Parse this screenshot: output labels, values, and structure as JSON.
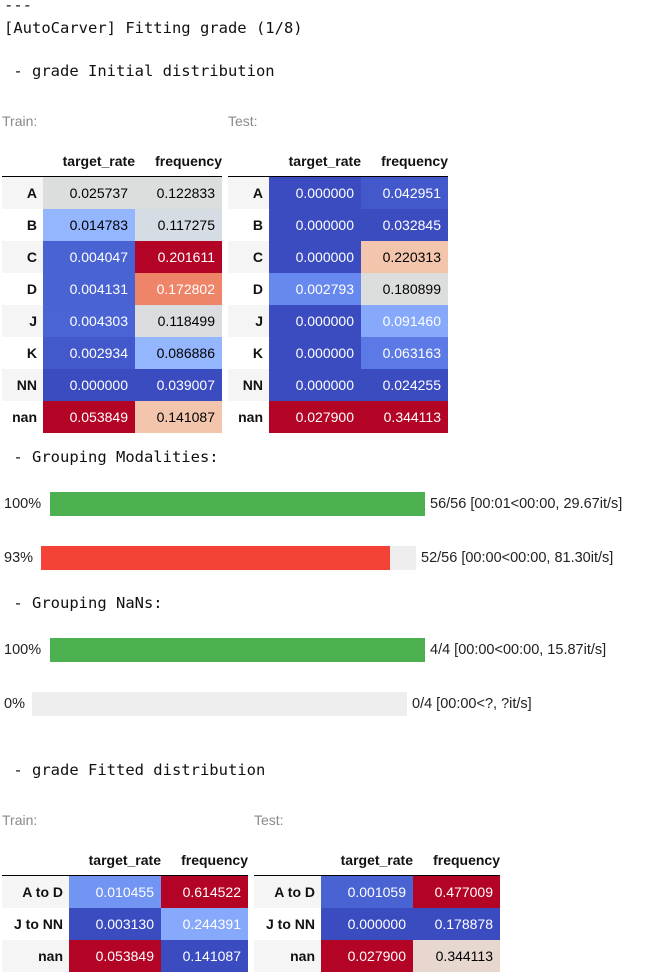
{
  "header": {
    "separator": "---",
    "title": "[AutoCarver] Fitting grade (1/8)"
  },
  "sections": {
    "initial": " - grade Initial distribution",
    "grouping_modalities": " - Grouping Modalities:",
    "grouping_nans": " - Grouping NaNs:",
    "fitted": " - grade Fitted distribution"
  },
  "captions": {
    "train": "Train:",
    "test": "Test:"
  },
  "colors": {
    "dark_blue": "#3c4ec2",
    "mid_blue": "#4a63d3",
    "light_blue": "#94b6ff",
    "pale_blue": "#86a9fc",
    "gray": "#dcdddd",
    "peach": "#f4c5ad",
    "salmon": "#ee8468",
    "dark_red": "#b40426",
    "progress_green": "#4caf50",
    "progress_red": "#f44336",
    "progress_track": "#eeeeee"
  },
  "tables": {
    "initial_train": {
      "columns": [
        "target_rate",
        "frequency"
      ],
      "rows": [
        {
          "label": "A",
          "cells": [
            {
              "v": "0.025737",
              "bg": "#dcdddd",
              "fg": "#000"
            },
            {
              "v": "0.122833",
              "bg": "#dcdddd",
              "fg": "#000"
            }
          ]
        },
        {
          "label": "B",
          "cells": [
            {
              "v": "0.014783",
              "bg": "#94b6ff",
              "fg": "#000"
            },
            {
              "v": "0.117275",
              "bg": "#d6dce4",
              "fg": "#000"
            }
          ]
        },
        {
          "label": "C",
          "cells": [
            {
              "v": "0.004047",
              "bg": "#4a63d3",
              "fg": "#fff"
            },
            {
              "v": "0.201611",
              "bg": "#b40426",
              "fg": "#fff"
            }
          ]
        },
        {
          "label": "D",
          "cells": [
            {
              "v": "0.004131",
              "bg": "#4a63d3",
              "fg": "#fff"
            },
            {
              "v": "0.172802",
              "bg": "#ee8468",
              "fg": "#fff"
            }
          ]
        },
        {
          "label": "J",
          "cells": [
            {
              "v": "0.004303",
              "bg": "#4b64d5",
              "fg": "#fff"
            },
            {
              "v": "0.118499",
              "bg": "#dadce0",
              "fg": "#000"
            }
          ]
        },
        {
          "label": "K",
          "cells": [
            {
              "v": "0.002934",
              "bg": "#4358cb",
              "fg": "#fff"
            },
            {
              "v": "0.086886",
              "bg": "#94b6ff",
              "fg": "#000"
            }
          ]
        },
        {
          "label": "NN",
          "cells": [
            {
              "v": "0.000000",
              "bg": "#3b4cc0",
              "fg": "#fff"
            },
            {
              "v": "0.039007",
              "bg": "#3b4cc0",
              "fg": "#fff"
            }
          ]
        },
        {
          "label": "nan",
          "cells": [
            {
              "v": "0.053849",
              "bg": "#b40426",
              "fg": "#fff"
            },
            {
              "v": "0.141087",
              "bg": "#f4c5ad",
              "fg": "#000"
            }
          ]
        }
      ]
    },
    "initial_test": {
      "columns": [
        "target_rate",
        "frequency"
      ],
      "rows": [
        {
          "label": "A",
          "cells": [
            {
              "v": "0.000000",
              "bg": "#3b4cc0",
              "fg": "#fff"
            },
            {
              "v": "0.042951",
              "bg": "#4358cb",
              "fg": "#fff"
            }
          ]
        },
        {
          "label": "B",
          "cells": [
            {
              "v": "0.000000",
              "bg": "#3b4cc0",
              "fg": "#fff"
            },
            {
              "v": "0.032845",
              "bg": "#3b4cc0",
              "fg": "#fff"
            }
          ]
        },
        {
          "label": "C",
          "cells": [
            {
              "v": "0.000000",
              "bg": "#3b4cc0",
              "fg": "#fff"
            },
            {
              "v": "0.220313",
              "bg": "#f4c5ad",
              "fg": "#000"
            }
          ]
        },
        {
          "label": "D",
          "cells": [
            {
              "v": "0.002793",
              "bg": "#6788ee",
              "fg": "#fff"
            },
            {
              "v": "0.180899",
              "bg": "#dcdddd",
              "fg": "#000"
            }
          ]
        },
        {
          "label": "J",
          "cells": [
            {
              "v": "0.000000",
              "bg": "#3b4cc0",
              "fg": "#fff"
            },
            {
              "v": "0.091460",
              "bg": "#86a9fc",
              "fg": "#fff"
            }
          ]
        },
        {
          "label": "K",
          "cells": [
            {
              "v": "0.000000",
              "bg": "#3b4cc0",
              "fg": "#fff"
            },
            {
              "v": "0.063163",
              "bg": "#5b7ae5",
              "fg": "#fff"
            }
          ]
        },
        {
          "label": "NN",
          "cells": [
            {
              "v": "0.000000",
              "bg": "#3b4cc0",
              "fg": "#fff"
            },
            {
              "v": "0.024255",
              "bg": "#3b4cc0",
              "fg": "#fff"
            }
          ]
        },
        {
          "label": "nan",
          "cells": [
            {
              "v": "0.027900",
              "bg": "#b40426",
              "fg": "#fff"
            },
            {
              "v": "0.344113",
              "bg": "#b40426",
              "fg": "#fff"
            }
          ]
        }
      ]
    },
    "fitted_train": {
      "columns": [
        "target_rate",
        "frequency"
      ],
      "rows": [
        {
          "label": "A to D",
          "cells": [
            {
              "v": "0.010455",
              "bg": "#7295f4",
              "fg": "#fff"
            },
            {
              "v": "0.614522",
              "bg": "#b40426",
              "fg": "#fff"
            }
          ]
        },
        {
          "label": "J to NN",
          "cells": [
            {
              "v": "0.003130",
              "bg": "#3b4cc0",
              "fg": "#fff"
            },
            {
              "v": "0.244391",
              "bg": "#86a9fc",
              "fg": "#fff"
            }
          ]
        },
        {
          "label": "nan",
          "cells": [
            {
              "v": "0.053849",
              "bg": "#b40426",
              "fg": "#fff"
            },
            {
              "v": "0.141087",
              "bg": "#3b4cc0",
              "fg": "#fff"
            }
          ]
        }
      ]
    },
    "fitted_test": {
      "columns": [
        "target_rate",
        "frequency"
      ],
      "rows": [
        {
          "label": "A to D",
          "cells": [
            {
              "v": "0.001059",
              "bg": "#4a63d3",
              "fg": "#fff"
            },
            {
              "v": "0.477009",
              "bg": "#b40426",
              "fg": "#fff"
            }
          ]
        },
        {
          "label": "J to NN",
          "cells": [
            {
              "v": "0.000000",
              "bg": "#3b4cc0",
              "fg": "#fff"
            },
            {
              "v": "0.178878",
              "bg": "#3b4cc0",
              "fg": "#fff"
            }
          ]
        },
        {
          "label": "nan",
          "cells": [
            {
              "v": "0.027900",
              "bg": "#b40426",
              "fg": "#fff"
            },
            {
              "v": "0.344113",
              "bg": "#e7d7ce",
              "fg": "#000"
            }
          ]
        }
      ]
    }
  },
  "progress": [
    {
      "id": "pm1",
      "percent_label": "100%",
      "fraction": 1.0,
      "status": "56/56 [00:01<00:00, 29.67it/s]",
      "color": "#4caf50"
    },
    {
      "id": "pm2",
      "percent_label": "93%",
      "fraction": 0.93,
      "status": "52/56 [00:00<00:00, 81.30it/s]",
      "color": "#f44336"
    },
    {
      "id": "pn1",
      "percent_label": "100%",
      "fraction": 1.0,
      "status": "4/4 [00:00<00:00, 15.87it/s]",
      "color": "#4caf50"
    },
    {
      "id": "pn2",
      "percent_label": "0%",
      "fraction": 0.0,
      "status": "0/4 [00:00<?, ?it/s]",
      "color": "#4caf50"
    }
  ]
}
